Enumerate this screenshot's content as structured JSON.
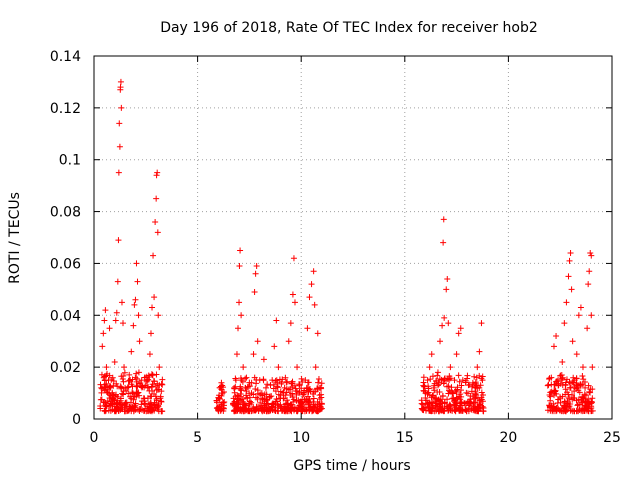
{
  "chart_data": {
    "type": "scatter",
    "title": "Day 196 of 2018, Rate Of TEC Index for receiver hob2",
    "xlabel": "GPS time / hours",
    "ylabel": "ROTI / TECUs",
    "xlim": [
      0,
      25
    ],
    "ylim": [
      0,
      0.14
    ],
    "xticks": [
      0,
      5,
      10,
      15,
      20,
      25
    ],
    "xtick_labels": [
      "0",
      "5",
      "10",
      "15",
      "20",
      "25"
    ],
    "yticks": [
      0,
      0.02,
      0.04,
      0.06,
      0.08,
      0.1,
      0.12,
      0.14
    ],
    "ytick_labels": [
      "0",
      "0.02",
      "0.04",
      "0.06",
      "0.08",
      "0.1",
      "0.12",
      "0.14"
    ],
    "grid": true,
    "marker": "+",
    "color": "#ff0000",
    "series": [
      {
        "name": "ROTI",
        "points": [
          [
            0.3,
            0.005
          ],
          [
            0.35,
            0.012
          ],
          [
            0.4,
            0.028
          ],
          [
            0.45,
            0.033
          ],
          [
            0.5,
            0.038
          ],
          [
            0.55,
            0.042
          ],
          [
            0.6,
            0.02
          ],
          [
            0.7,
            0.015
          ],
          [
            0.75,
            0.035
          ],
          [
            0.8,
            0.009
          ],
          [
            0.9,
            0.006
          ],
          [
            1.0,
            0.022
          ],
          [
            1.05,
            0.038
          ],
          [
            1.1,
            0.041
          ],
          [
            1.15,
            0.053
          ],
          [
            1.18,
            0.069
          ],
          [
            1.2,
            0.095
          ],
          [
            1.25,
            0.105
          ],
          [
            1.22,
            0.114
          ],
          [
            1.27,
            0.127
          ],
          [
            1.28,
            0.128
          ],
          [
            1.3,
            0.13
          ],
          [
            1.32,
            0.12
          ],
          [
            1.35,
            0.045
          ],
          [
            1.4,
            0.037
          ],
          [
            1.45,
            0.02
          ],
          [
            1.5,
            0.012
          ],
          [
            1.55,
            0.005
          ],
          [
            1.7,
            0.017
          ],
          [
            1.8,
            0.026
          ],
          [
            1.9,
            0.036
          ],
          [
            1.95,
            0.044
          ],
          [
            2.0,
            0.046
          ],
          [
            2.05,
            0.06
          ],
          [
            2.1,
            0.053
          ],
          [
            2.15,
            0.04
          ],
          [
            2.2,
            0.03
          ],
          [
            2.3,
            0.015
          ],
          [
            2.4,
            0.008
          ],
          [
            2.5,
            0.004
          ],
          [
            2.6,
            0.012
          ],
          [
            2.7,
            0.025
          ],
          [
            2.75,
            0.033
          ],
          [
            2.8,
            0.043
          ],
          [
            2.85,
            0.063
          ],
          [
            2.9,
            0.047
          ],
          [
            2.95,
            0.076
          ],
          [
            3.0,
            0.085
          ],
          [
            3.02,
            0.094
          ],
          [
            3.05,
            0.095
          ],
          [
            3.08,
            0.072
          ],
          [
            3.1,
            0.04
          ],
          [
            3.15,
            0.02
          ],
          [
            3.2,
            0.008
          ],
          [
            3.25,
            0.003
          ],
          [
            6.0,
            0.004
          ],
          [
            6.05,
            0.008
          ],
          [
            6.1,
            0.012
          ],
          [
            6.15,
            0.014
          ],
          [
            6.2,
            0.01
          ],
          [
            6.8,
            0.005
          ],
          [
            6.85,
            0.015
          ],
          [
            6.9,
            0.025
          ],
          [
            6.95,
            0.035
          ],
          [
            7.0,
            0.045
          ],
          [
            7.02,
            0.059
          ],
          [
            7.05,
            0.065
          ],
          [
            7.1,
            0.04
          ],
          [
            7.2,
            0.02
          ],
          [
            7.3,
            0.012
          ],
          [
            7.4,
            0.008
          ],
          [
            7.5,
            0.006
          ],
          [
            7.6,
            0.01
          ],
          [
            7.7,
            0.025
          ],
          [
            7.75,
            0.049
          ],
          [
            7.8,
            0.056
          ],
          [
            7.85,
            0.059
          ],
          [
            7.9,
            0.03
          ],
          [
            8.0,
            0.015
          ],
          [
            8.1,
            0.01
          ],
          [
            8.2,
            0.023
          ],
          [
            8.3,
            0.012
          ],
          [
            8.4,
            0.006
          ],
          [
            8.6,
            0.015
          ],
          [
            8.7,
            0.028
          ],
          [
            8.8,
            0.038
          ],
          [
            8.9,
            0.02
          ],
          [
            9.0,
            0.008
          ],
          [
            9.2,
            0.012
          ],
          [
            9.4,
            0.03
          ],
          [
            9.5,
            0.037
          ],
          [
            9.6,
            0.048
          ],
          [
            9.65,
            0.062
          ],
          [
            9.7,
            0.045
          ],
          [
            9.8,
            0.02
          ],
          [
            9.9,
            0.01
          ],
          [
            10.0,
            0.006
          ],
          [
            10.2,
            0.015
          ],
          [
            10.3,
            0.035
          ],
          [
            10.4,
            0.047
          ],
          [
            10.5,
            0.052
          ],
          [
            10.6,
            0.057
          ],
          [
            10.65,
            0.044
          ],
          [
            10.7,
            0.02
          ],
          [
            10.8,
            0.033
          ],
          [
            10.9,
            0.012
          ],
          [
            11.0,
            0.004
          ],
          [
            15.9,
            0.004
          ],
          [
            16.0,
            0.01
          ],
          [
            16.1,
            0.015
          ],
          [
            16.2,
            0.02
          ],
          [
            16.3,
            0.025
          ],
          [
            16.4,
            0.012
          ],
          [
            16.5,
            0.008
          ],
          [
            16.6,
            0.018
          ],
          [
            16.7,
            0.03
          ],
          [
            16.8,
            0.036
          ],
          [
            16.85,
            0.068
          ],
          [
            16.88,
            0.077
          ],
          [
            16.9,
            0.039
          ],
          [
            17.0,
            0.05
          ],
          [
            17.05,
            0.054
          ],
          [
            17.1,
            0.037
          ],
          [
            17.2,
            0.02
          ],
          [
            17.3,
            0.01
          ],
          [
            17.4,
            0.015
          ],
          [
            17.5,
            0.025
          ],
          [
            17.6,
            0.033
          ],
          [
            17.7,
            0.035
          ],
          [
            17.8,
            0.015
          ],
          [
            17.9,
            0.006
          ],
          [
            18.3,
            0.005
          ],
          [
            18.4,
            0.012
          ],
          [
            18.5,
            0.02
          ],
          [
            18.6,
            0.026
          ],
          [
            18.7,
            0.037
          ],
          [
            18.75,
            0.015
          ],
          [
            18.8,
            0.003
          ],
          [
            22.0,
            0.005
          ],
          [
            22.1,
            0.01
          ],
          [
            22.2,
            0.028
          ],
          [
            22.3,
            0.032
          ],
          [
            22.4,
            0.015
          ],
          [
            22.5,
            0.008
          ],
          [
            22.6,
            0.022
          ],
          [
            22.7,
            0.037
          ],
          [
            22.8,
            0.045
          ],
          [
            22.9,
            0.055
          ],
          [
            22.95,
            0.061
          ],
          [
            23.0,
            0.064
          ],
          [
            23.05,
            0.05
          ],
          [
            23.1,
            0.03
          ],
          [
            23.2,
            0.015
          ],
          [
            23.3,
            0.025
          ],
          [
            23.4,
            0.04
          ],
          [
            23.5,
            0.043
          ],
          [
            23.6,
            0.02
          ],
          [
            23.7,
            0.012
          ],
          [
            23.8,
            0.035
          ],
          [
            23.85,
            0.052
          ],
          [
            23.9,
            0.057
          ],
          [
            23.95,
            0.064
          ],
          [
            24.0,
            0.063
          ],
          [
            24.0,
            0.04
          ],
          [
            24.05,
            0.02
          ],
          [
            24.05,
            0.008
          ]
        ],
        "bands": [
          {
            "x": [
              0.3,
              3.3
            ],
            "y": [
              0.003,
              0.018
            ]
          },
          {
            "x": [
              5.9,
              6.3
            ],
            "y": [
              0.003,
              0.013
            ]
          },
          {
            "x": [
              6.7,
              11.0
            ],
            "y": [
              0.003,
              0.016
            ]
          },
          {
            "x": [
              15.8,
              18.8
            ],
            "y": [
              0.003,
              0.017
            ]
          },
          {
            "x": [
              21.9,
              24.1
            ],
            "y": [
              0.003,
              0.017
            ]
          }
        ]
      }
    ]
  }
}
